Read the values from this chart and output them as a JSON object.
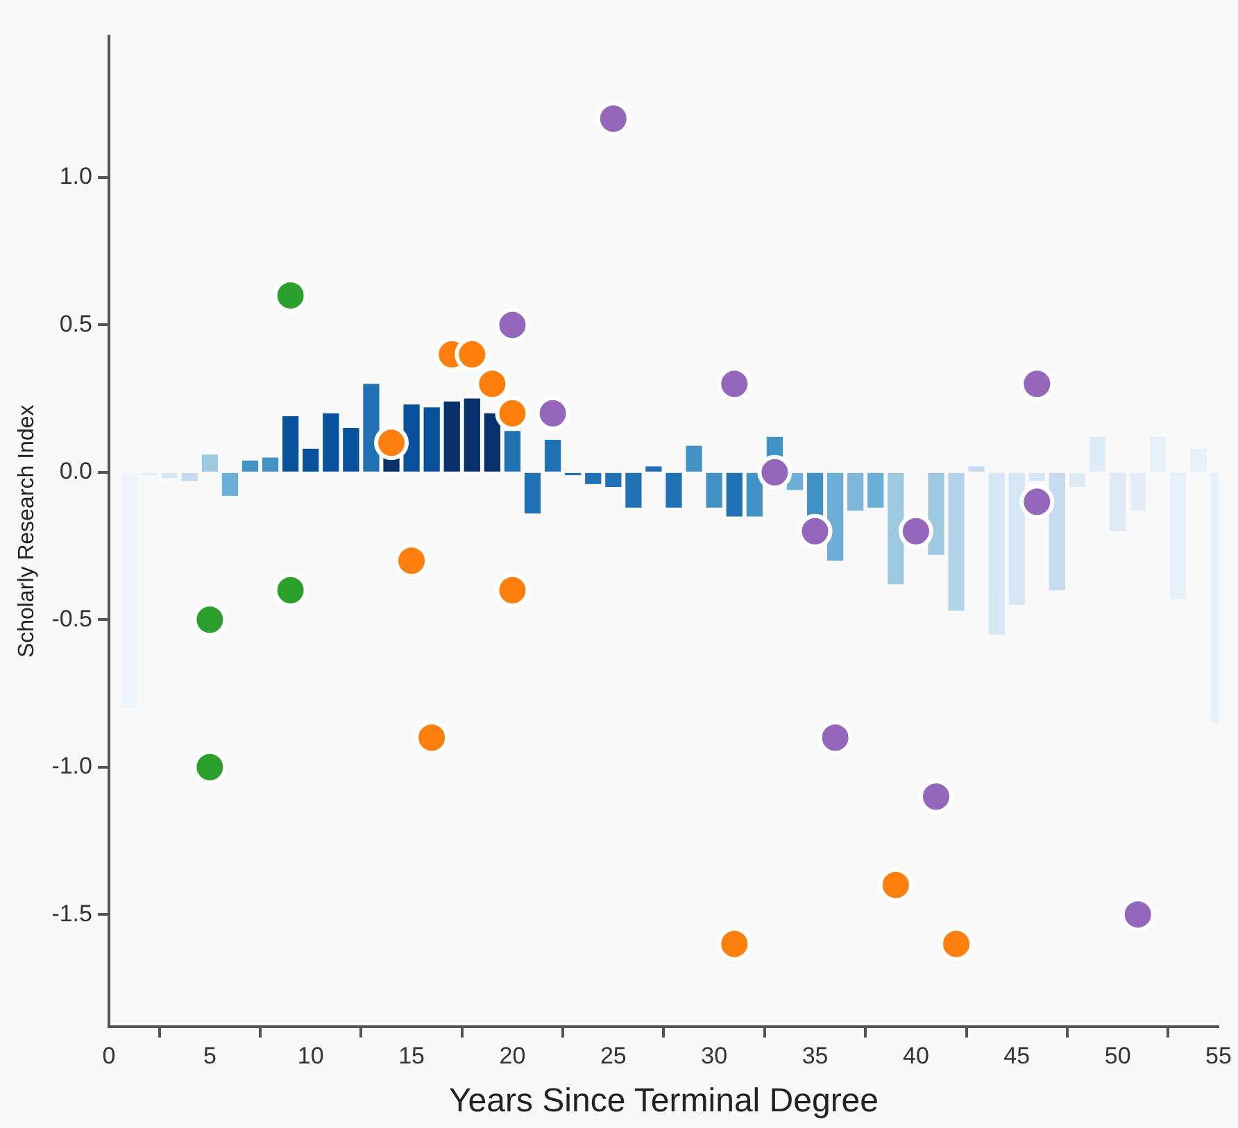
{
  "chart_data": {
    "type": "bar",
    "xlabel": "Years Since Terminal Degree",
    "ylabel": "Scholarly Research Index",
    "xlim": [
      0,
      55
    ],
    "ylim": [
      -1.88,
      1.48
    ],
    "xticks": [
      0,
      5,
      10,
      15,
      20,
      25,
      30,
      35,
      40,
      45,
      50,
      55
    ],
    "yticks": [
      {
        "value": -1.5,
        "label": "-1.5"
      },
      {
        "value": -1,
        "label": "-1.0"
      },
      {
        "value": -0.5,
        "label": "-0.5"
      },
      {
        "value": 0,
        "label": "0.0"
      },
      {
        "value": 0.5,
        "label": "0.5"
      },
      {
        "value": 1,
        "label": "1.0"
      }
    ],
    "marker": "circle",
    "series": [
      {
        "x": [
          1,
          2,
          3,
          4,
          5,
          6,
          7,
          8,
          9,
          10,
          11,
          12,
          13,
          14,
          15,
          16,
          17,
          18,
          19,
          20,
          21,
          22,
          23,
          24,
          25,
          26,
          27,
          28,
          29,
          30,
          31,
          32,
          33,
          34,
          35,
          36,
          37,
          38,
          39,
          40,
          41,
          42,
          43,
          44,
          45,
          46,
          47,
          48,
          49,
          50,
          51,
          52,
          53,
          54,
          55
        ],
        "values": [
          -0.8,
          -0.01,
          -0.02,
          -0.03,
          0.06,
          -0.08,
          0.04,
          0.05,
          0.19,
          0.08,
          0.2,
          0.15,
          0.3,
          0.05,
          0.23,
          0.22,
          0.24,
          0.25,
          0.2,
          0.14,
          -0.14,
          0.11,
          -0.01,
          -0.04,
          -0.05,
          -0.12,
          0.02,
          -0.12,
          0.09,
          -0.12,
          -0.15,
          -0.15,
          0.12,
          -0.06,
          -0.17,
          -0.3,
          -0.13,
          -0.12,
          -0.38,
          null,
          -0.28,
          -0.47,
          0.02,
          -0.55,
          -0.45,
          -0.03,
          -0.4,
          -0.05,
          0.12,
          -0.2,
          -0.13,
          0.12,
          -0.43,
          0.08,
          -0.85
        ],
        "colors": [
          "#eef5fd",
          "#e3eef9",
          "#d6e6f4",
          "#c6dbef",
          "#9ecae1",
          "#6baed6",
          "#4292c6",
          "#4292c6",
          "#08519c",
          "#08519c",
          "#08519c",
          "#08519c",
          "#2171b5",
          "#08306b",
          "#08519c",
          "#08519c",
          "#08306b",
          "#08306b",
          "#08306b",
          "#2171b5",
          "#2171b5",
          "#2171b5",
          "#2171b5",
          "#2171b5",
          "#2171b5",
          "#2171b5",
          "#2171b5",
          "#2171b5",
          "#4292c6",
          "#4292c6",
          "#2171b5",
          "#4292c6",
          "#4292c6",
          "#6baed6",
          "#4292c6",
          "#6baed6",
          "#7fb8da",
          "#6baed6",
          "#9ecae1",
          "#9ecae1",
          "#9ecae1",
          "#b3d3e8",
          "#c6dbef",
          "#d6e6f4",
          "#d6e6f4",
          "#d6e6f4",
          "#c6dbef",
          "#deebf7",
          "#deebf7",
          "#deebf7",
          "#e3eef9",
          "#e6f0fa",
          "#e6f0fa",
          "#e6f0fa",
          "#e6f0fa"
        ]
      },
      {
        "type": "scatter",
        "color": "#2ca02c",
        "x": [
          5,
          5,
          9,
          9
        ],
        "values": [
          -0.5,
          -1.0,
          0.6,
          -0.4
        ]
      },
      {
        "type": "scatter",
        "color": "#ff7f0e",
        "x": [
          14,
          15,
          16,
          17,
          18,
          19,
          20,
          20,
          31,
          39,
          42
        ],
        "values": [
          0.1,
          -0.3,
          -0.9,
          0.4,
          0.4,
          0.3,
          0.2,
          -0.4,
          -1.6,
          -1.4,
          -1.6
        ]
      },
      {
        "type": "scatter",
        "color": "#9467bd",
        "x": [
          20,
          22,
          25,
          31,
          33,
          35,
          36,
          40,
          41,
          46,
          46,
          51
        ],
        "values": [
          0.5,
          0.2,
          1.2,
          0.3,
          0,
          -0.2,
          -0.9,
          -0.2,
          -1.1,
          0.3,
          -0.1,
          -1.5
        ]
      }
    ]
  }
}
